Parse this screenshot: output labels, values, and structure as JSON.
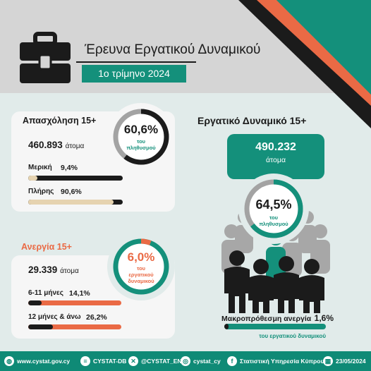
{
  "header": {
    "title": "Έρευνα Εργατικού Δυναμικού",
    "quarter": "1ο τρίμηνο 2024"
  },
  "employment": {
    "title": "Απασχόληση 15+",
    "count": "460.893",
    "count_unit": "άτομα",
    "rate": "60,6%",
    "rate_caption_1": "του",
    "rate_caption_2": "πληθυσμού",
    "rate_value": 60.6,
    "part_time_label": "Μερική",
    "part_time_value": "9,4%",
    "part_time_fraction": 0.094,
    "full_time_label": "Πλήρης",
    "full_time_value": "90,6%",
    "full_time_fraction": 0.906
  },
  "unemployment": {
    "title": "Ανεργία 15+",
    "count": "29.339",
    "count_unit": "άτομα",
    "rate": "6,0%",
    "rate_caption_1": "του",
    "rate_caption_2": "εργατικού",
    "rate_caption_3": "δυναμικού",
    "rate_value": 6.0,
    "short_label": "6-11 μήνες",
    "short_value": "14,1%",
    "short_fraction": 0.141,
    "long_label": "12 μήνες & άνω",
    "long_value": "26,2%",
    "long_fraction": 0.262
  },
  "labour_force": {
    "title": "Εργατικό Δυναμικό 15+",
    "count": "490.232",
    "count_unit": "άτομα",
    "rate": "64,5%",
    "rate_caption_1": "του",
    "rate_caption_2": "πληθυσμού",
    "rate_value": 64.5,
    "long_term_label": "Μακροπρόθεσμη ανεργία",
    "long_term_value": "1,6%",
    "long_term_fraction": 0.016,
    "long_term_caption": "του εργατικού δυναμικού"
  },
  "footer": {
    "website": "www.cystat.gov.cy",
    "db": "CYSTAT-DB",
    "x": "@CYSTAT_EN",
    "instagram": "cystat_cy",
    "facebook": "Στατιστική Υπηρεσία Κύπρου",
    "date": "23/05/2024"
  },
  "colors": {
    "teal": "#14907b",
    "orange": "#ea6a45",
    "dark": "#1b1b1b",
    "beige": "#e6d3b0"
  },
  "icons": [
    "briefcase-icon",
    "globe-icon",
    "database-icon",
    "x-icon",
    "instagram-icon",
    "facebook-icon",
    "calendar-icon",
    "people-icon"
  ]
}
